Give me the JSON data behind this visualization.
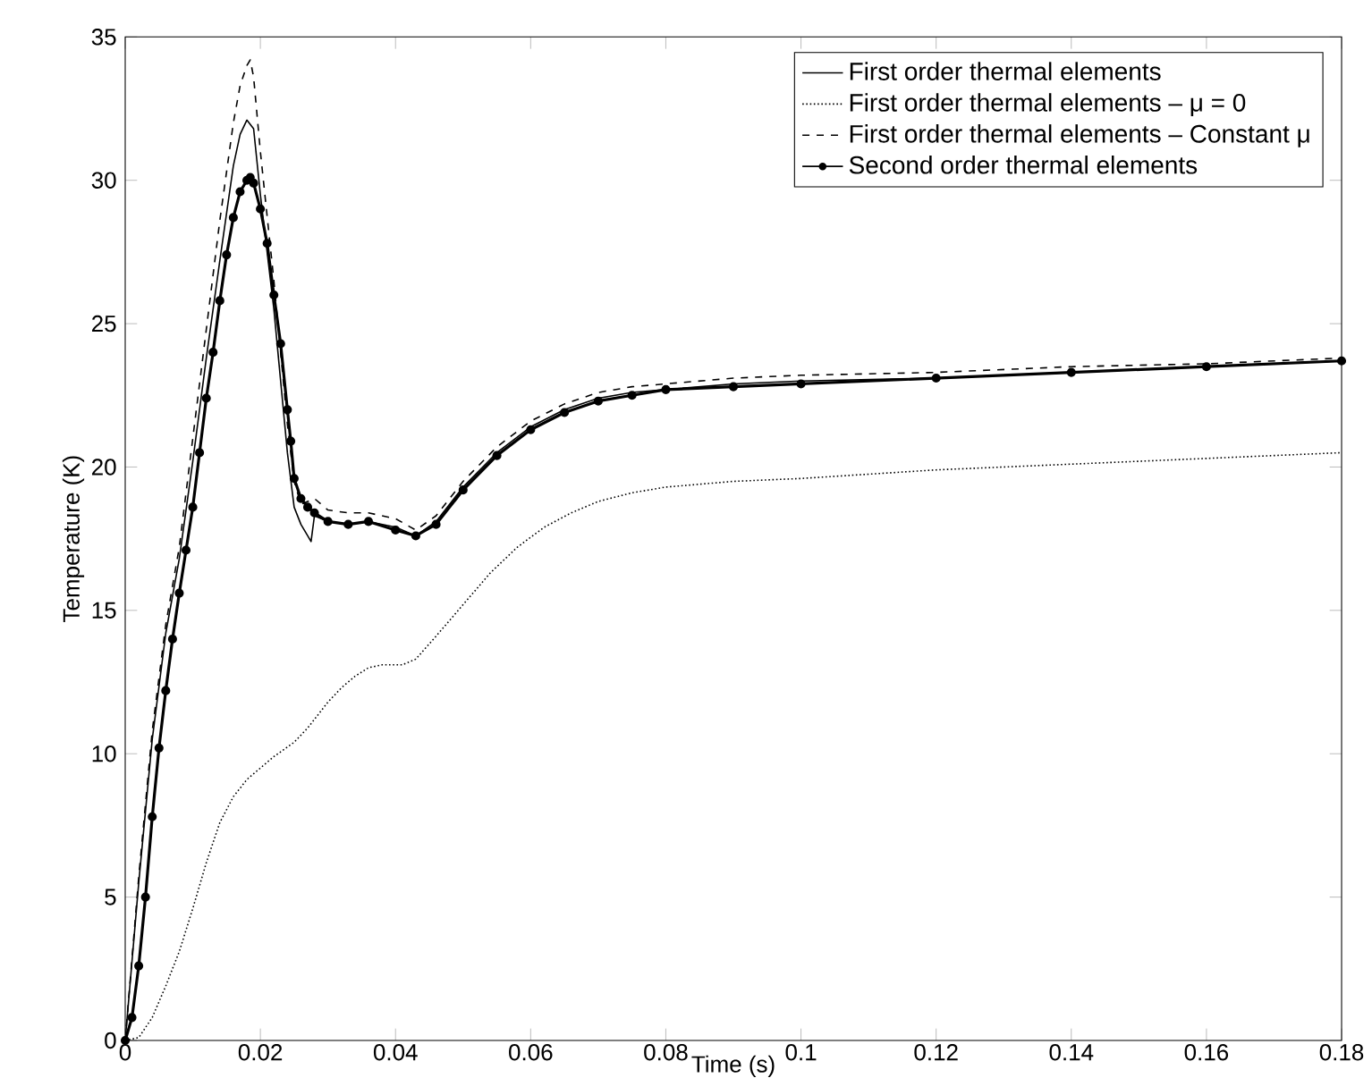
{
  "chart_data": {
    "type": "line",
    "xlabel": "Time (s)",
    "ylabel": "Temperature (K)",
    "xlim": [
      0,
      0.18
    ],
    "ylim": [
      0,
      35
    ],
    "xticks": [
      0,
      0.02,
      0.04,
      0.06,
      0.08,
      0.1,
      0.12,
      0.14,
      0.16,
      0.18
    ],
    "yticks": [
      0,
      5,
      10,
      15,
      20,
      25,
      30,
      35
    ],
    "grid": false,
    "legend": "top right",
    "series": [
      {
        "name": "First order thermal elements",
        "color": "#000000",
        "line_style": "solid",
        "marker": "none",
        "x": [
          0,
          0.002,
          0.004,
          0.006,
          0.008,
          0.01,
          0.012,
          0.014,
          0.016,
          0.017,
          0.018,
          0.019,
          0.02,
          0.022,
          0.024,
          0.025,
          0.026,
          0.027,
          0.0275,
          0.028,
          0.03,
          0.033,
          0.036,
          0.04,
          0.043,
          0.046,
          0.05,
          0.055,
          0.06,
          0.065,
          0.07,
          0.075,
          0.08,
          0.09,
          0.1,
          0.12,
          0.14,
          0.16,
          0.18
        ],
        "values": [
          0,
          5.5,
          10.5,
          14.2,
          16.8,
          20.2,
          23.8,
          27.2,
          30.5,
          31.6,
          32.1,
          31.8,
          29.5,
          25.5,
          20.5,
          18.6,
          18.0,
          17.6,
          17.4,
          18.3,
          18.1,
          18.0,
          18.1,
          17.9,
          17.6,
          18.1,
          19.3,
          20.5,
          21.4,
          22.0,
          22.4,
          22.6,
          22.7,
          22.9,
          23.0,
          23.1,
          23.3,
          23.5,
          23.7
        ]
      },
      {
        "name": "First order thermal elements – μ = 0",
        "color": "#000000",
        "line_style": "dotted",
        "marker": "none",
        "x": [
          0,
          0.002,
          0.004,
          0.006,
          0.008,
          0.01,
          0.012,
          0.014,
          0.016,
          0.018,
          0.02,
          0.022,
          0.025,
          0.027,
          0.03,
          0.032,
          0.034,
          0.036,
          0.038,
          0.041,
          0.043,
          0.046,
          0.05,
          0.054,
          0.058,
          0.062,
          0.066,
          0.07,
          0.075,
          0.08,
          0.09,
          0.1,
          0.12,
          0.14,
          0.16,
          0.18
        ],
        "values": [
          0,
          0.1,
          0.8,
          1.9,
          3.1,
          4.6,
          6.2,
          7.6,
          8.5,
          9.1,
          9.5,
          9.9,
          10.4,
          10.9,
          11.8,
          12.3,
          12.7,
          13.0,
          13.1,
          13.1,
          13.3,
          14.1,
          15.2,
          16.3,
          17.2,
          17.9,
          18.4,
          18.8,
          19.1,
          19.3,
          19.5,
          19.6,
          19.9,
          20.1,
          20.3,
          20.5
        ]
      },
      {
        "name": "First order thermal elements – Constant μ",
        "color": "#000000",
        "line_style": "dashed",
        "marker": "none",
        "x": [
          0,
          0.002,
          0.004,
          0.006,
          0.008,
          0.01,
          0.012,
          0.014,
          0.016,
          0.017,
          0.018,
          0.0185,
          0.019,
          0.02,
          0.022,
          0.024,
          0.025,
          0.026,
          0.028,
          0.03,
          0.033,
          0.036,
          0.04,
          0.043,
          0.046,
          0.05,
          0.055,
          0.06,
          0.065,
          0.07,
          0.075,
          0.08,
          0.09,
          0.1,
          0.12,
          0.14,
          0.16,
          0.18
        ],
        "values": [
          0,
          5.7,
          10.8,
          14.5,
          17.2,
          21.0,
          24.8,
          28.6,
          32.0,
          33.3,
          34.0,
          34.2,
          33.6,
          31.0,
          26.5,
          21.5,
          19.5,
          18.7,
          18.9,
          18.5,
          18.4,
          18.4,
          18.2,
          17.8,
          18.3,
          19.5,
          20.7,
          21.6,
          22.2,
          22.6,
          22.8,
          22.9,
          23.1,
          23.2,
          23.3,
          23.5,
          23.6,
          23.8
        ]
      },
      {
        "name": "Second order thermal elements",
        "color": "#000000",
        "line_style": "solid",
        "marker": "circle",
        "x": [
          0,
          0.001,
          0.002,
          0.003,
          0.004,
          0.005,
          0.006,
          0.007,
          0.008,
          0.009,
          0.01,
          0.011,
          0.012,
          0.013,
          0.014,
          0.015,
          0.016,
          0.017,
          0.018,
          0.0185,
          0.019,
          0.02,
          0.021,
          0.022,
          0.023,
          0.024,
          0.0245,
          0.025,
          0.026,
          0.027,
          0.028,
          0.03,
          0.033,
          0.036,
          0.04,
          0.043,
          0.046,
          0.05,
          0.055,
          0.06,
          0.065,
          0.07,
          0.075,
          0.08,
          0.09,
          0.1,
          0.12,
          0.14,
          0.16,
          0.18
        ],
        "values": [
          0,
          0.8,
          2.6,
          5.0,
          7.8,
          10.2,
          12.2,
          14.0,
          15.6,
          17.1,
          18.6,
          20.5,
          22.4,
          24.0,
          25.8,
          27.4,
          28.7,
          29.6,
          30.0,
          30.1,
          29.9,
          29.0,
          27.8,
          26.0,
          24.3,
          22.0,
          20.9,
          19.6,
          18.9,
          18.6,
          18.4,
          18.1,
          18.0,
          18.1,
          17.8,
          17.6,
          18.0,
          19.2,
          20.4,
          21.3,
          21.9,
          22.3,
          22.5,
          22.7,
          22.8,
          22.9,
          23.1,
          23.3,
          23.5,
          23.7
        ]
      }
    ]
  }
}
